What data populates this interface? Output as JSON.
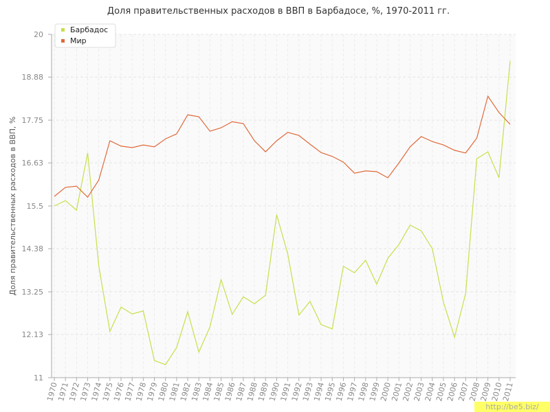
{
  "chart_data": {
    "type": "line",
    "title": "Доля правительственных расходов в ВВП в Барбадосе, %, 1970-2011 гг.",
    "y_label": "Доля правительственных расходов в ВВП, %",
    "categories": [
      "1970",
      "1971",
      "1972",
      "1973",
      "1974",
      "1975",
      "1976",
      "1977",
      "1978",
      "1979",
      "1980",
      "1981",
      "1982",
      "1983",
      "1984",
      "1985",
      "1986",
      "1987",
      "1988",
      "1989",
      "1990",
      "1991",
      "1992",
      "1993",
      "1994",
      "1995",
      "1996",
      "1997",
      "1998",
      "1999",
      "2000",
      "2001",
      "2002",
      "2003",
      "2004",
      "2005",
      "2006",
      "2007",
      "2008",
      "2009",
      "2010",
      "2011"
    ],
    "series": [
      {
        "name": "Барбадос",
        "color": "#c5e04a",
        "values": [
          15.5,
          15.64,
          15.39,
          16.89,
          13.93,
          12.21,
          12.85,
          12.67,
          12.75,
          11.45,
          11.34,
          11.79,
          12.73,
          11.67,
          12.33,
          13.57,
          12.66,
          13.12,
          12.94,
          13.16,
          15.27,
          14.24,
          12.64,
          13.0,
          12.39,
          12.28,
          13.92,
          13.75,
          14.08,
          13.45,
          14.13,
          14.49,
          15.0,
          14.85,
          14.38,
          12.98,
          12.06,
          13.21,
          16.74,
          16.92,
          16.24,
          19.3
        ]
      },
      {
        "name": "Мир",
        "color": "#e0693a",
        "values": [
          15.75,
          15.99,
          16.02,
          15.73,
          16.18,
          17.21,
          17.07,
          17.03,
          17.1,
          17.05,
          17.26,
          17.39,
          17.89,
          17.84,
          17.46,
          17.55,
          17.71,
          17.66,
          17.21,
          16.92,
          17.21,
          17.43,
          17.35,
          17.12,
          16.9,
          16.8,
          16.65,
          16.36,
          16.42,
          16.4,
          16.24,
          16.63,
          17.05,
          17.32,
          17.19,
          17.1,
          16.96,
          16.89,
          17.28,
          18.38,
          17.95,
          17.64
        ]
      }
    ],
    "ylim": [
      11,
      20
    ],
    "yticks": [
      11,
      12.13,
      13.25,
      14.38,
      15.5,
      16.63,
      17.75,
      18.88,
      20
    ],
    "grid": true,
    "legend": "top-left"
  },
  "watermark": "http://be5.biz/"
}
